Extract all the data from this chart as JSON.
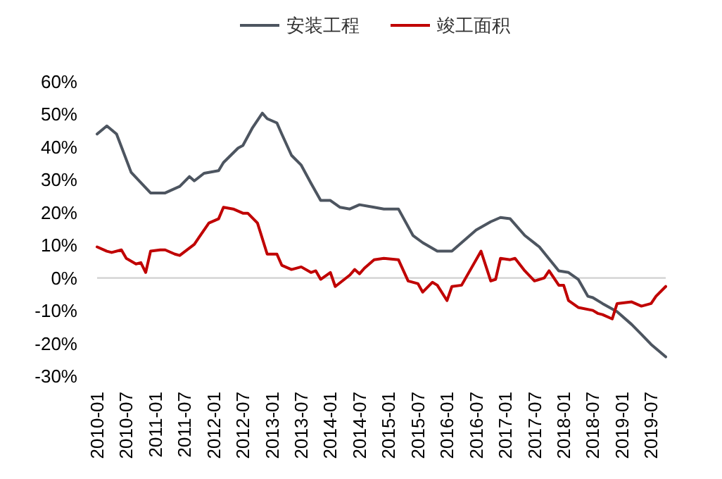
{
  "chart_data": {
    "type": "line",
    "legend": "top",
    "xlim": [
      "2010-01",
      "2019-10"
    ],
    "ylim": [
      -30,
      60
    ],
    "xticks": [
      "2010-01",
      "2010-07",
      "2011-01",
      "2011-07",
      "2012-01",
      "2012-07",
      "2013-01",
      "2013-07",
      "2014-01",
      "2014-07",
      "2015-01",
      "2015-07",
      "2016-01",
      "2016-07",
      "2017-01",
      "2017-07",
      "2018-01",
      "2018-07",
      "2019-01",
      "2019-07"
    ],
    "yticks": [
      {
        "value": -30,
        "label": "-30%"
      },
      {
        "value": -20,
        "label": "-20%"
      },
      {
        "value": -10,
        "label": "-10%"
      },
      {
        "value": 0,
        "label": "0%"
      },
      {
        "value": 10,
        "label": "10%"
      },
      {
        "value": 20,
        "label": "20%"
      },
      {
        "value": 30,
        "label": "30%"
      },
      {
        "value": 40,
        "label": "40%"
      },
      {
        "value": 50,
        "label": "50%"
      },
      {
        "value": 60,
        "label": "60%"
      }
    ],
    "series": [
      {
        "name": "安装工程",
        "color": "#4d5560",
        "x": [
          "2010-01",
          "2010-03",
          "2010-05",
          "2010-08",
          "2010-12",
          "2011-03",
          "2011-06",
          "2011-08",
          "2011-09",
          "2011-11",
          "2012-02",
          "2012-03",
          "2012-06",
          "2012-07",
          "2012-09",
          "2012-11",
          "2012-12",
          "2013-02",
          "2013-03",
          "2013-05",
          "2013-07",
          "2013-09",
          "2013-11",
          "2014-01",
          "2014-03",
          "2014-05",
          "2014-07",
          "2014-10",
          "2014-12",
          "2015-03",
          "2015-06",
          "2015-08",
          "2015-11",
          "2016-02",
          "2016-04",
          "2016-07",
          "2016-10",
          "2016-12",
          "2017-02",
          "2017-05",
          "2017-08",
          "2017-12",
          "2018-02",
          "2018-04",
          "2018-06",
          "2018-07",
          "2018-09",
          "2018-12",
          "2019-03",
          "2019-05",
          "2019-07",
          "2019-10"
        ],
        "values": [
          44,
          46.5,
          44,
          32.3,
          26,
          26,
          28,
          31,
          29.7,
          32,
          32.8,
          35.3,
          39.7,
          40.5,
          46,
          50.4,
          48.7,
          47.4,
          44,
          37.5,
          34.5,
          29,
          23.7,
          23.7,
          21.6,
          21.1,
          22.4,
          21.6,
          21.1,
          21.1,
          13,
          10.8,
          8.2,
          8.2,
          10.8,
          14.7,
          17.2,
          18.5,
          18.1,
          13,
          9.5,
          2.2,
          1.7,
          -0.4,
          -5.6,
          -6,
          -7.8,
          -10.3,
          -14.2,
          -17.2,
          -20.3,
          -24.1
        ]
      },
      {
        "name": "竣工面积",
        "color": "#c00000",
        "x": [
          "2010-01",
          "2010-03",
          "2010-04",
          "2010-06",
          "2010-07",
          "2010-09",
          "2010-10",
          "2010-11",
          "2010-12",
          "2011-02",
          "2011-03",
          "2011-05",
          "2011-06",
          "2011-09",
          "2011-10",
          "2011-12",
          "2012-02",
          "2012-03",
          "2012-05",
          "2012-07",
          "2012-08",
          "2012-10",
          "2012-12",
          "2013-02",
          "2013-03",
          "2013-05",
          "2013-07",
          "2013-09",
          "2013-10",
          "2013-11",
          "2014-01",
          "2014-02",
          "2014-05",
          "2014-06",
          "2014-07",
          "2014-08",
          "2014-10",
          "2014-12",
          "2015-03",
          "2015-05",
          "2015-07",
          "2015-08",
          "2015-10",
          "2015-11",
          "2016-01",
          "2016-02",
          "2016-04",
          "2016-08",
          "2016-10",
          "2016-11",
          "2016-12",
          "2017-02",
          "2017-03",
          "2017-05",
          "2017-07",
          "2017-09",
          "2017-10",
          "2017-12",
          "2018-01",
          "2018-02",
          "2018-04",
          "2018-07",
          "2018-08",
          "2018-09",
          "2018-11",
          "2018-12",
          "2019-03",
          "2019-05",
          "2019-07",
          "2019-08",
          "2019-10"
        ],
        "values": [
          9.5,
          8.2,
          7.8,
          8.6,
          6,
          4.3,
          4.7,
          1.7,
          8.2,
          8.6,
          8.6,
          7.3,
          6.9,
          10.3,
          12.5,
          16.8,
          18.1,
          21.6,
          21.1,
          19.8,
          19.8,
          16.8,
          7.3,
          7.3,
          3.9,
          2.6,
          3.4,
          1.7,
          2.2,
          -0.4,
          1.7,
          -2.6,
          0.9,
          2.6,
          1.3,
          3,
          5.6,
          6,
          5.6,
          -0.9,
          -1.7,
          -4.3,
          -1.3,
          -2.2,
          -6.9,
          -2.6,
          -2.2,
          8.2,
          -0.9,
          -0.4,
          6,
          5.6,
          6,
          2.2,
          -0.9,
          0,
          2.2,
          -2.2,
          -2.2,
          -6.9,
          -9,
          -9.9,
          -10.8,
          -11.2,
          -12.5,
          -7.8,
          -7.3,
          -8.6,
          -7.8,
          -5.6,
          -2.6
        ]
      }
    ]
  }
}
